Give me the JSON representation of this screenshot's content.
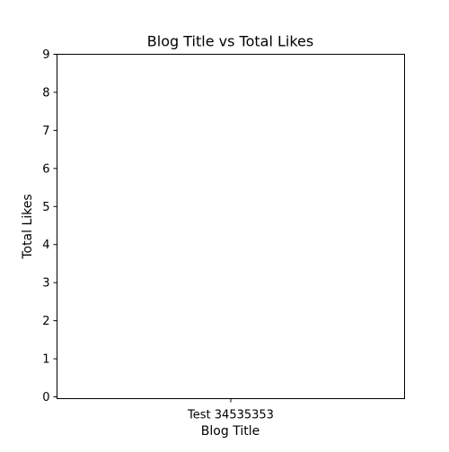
{
  "chart_data": {
    "type": "bar",
    "title": "Blog Title vs Total Likes",
    "xlabel": "Blog Title",
    "ylabel": "Total Likes",
    "categories": [
      "Test 34535353"
    ],
    "values": [
      0
    ],
    "ylim": [
      0,
      9
    ],
    "yticks": [
      "0",
      "1",
      "2",
      "3",
      "4",
      "5",
      "6",
      "7",
      "8",
      "9"
    ],
    "grid": false,
    "bar_color": "#1f77b4"
  }
}
